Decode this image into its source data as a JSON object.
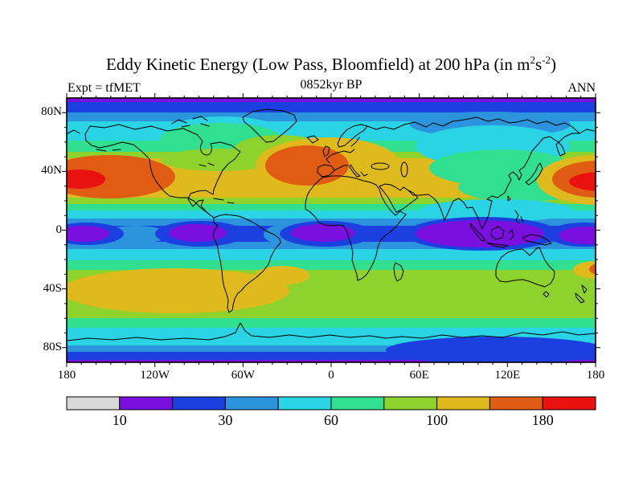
{
  "header": {
    "title": {
      "pre": "Eddy Kinetic Energy (Low Pass, Bloomfield) at 200 hPa (in m",
      "sup1": "2",
      "mid": "s",
      "sup2": "-2",
      "post": ")"
    },
    "subtitle": "0852kyr BP",
    "left_label": "Expt = tfMET",
    "right_label": "ANN"
  },
  "axes": {
    "lat_ticks": [
      {
        "label": "80N",
        "value": 80
      },
      {
        "label": "40N",
        "value": 40
      },
      {
        "label": "0",
        "value": 0
      },
      {
        "label": "40S",
        "value": -40
      },
      {
        "label": "80S",
        "value": -80
      }
    ],
    "lon_ticks": [
      {
        "label": "180",
        "value": -180
      },
      {
        "label": "120W",
        "value": -120
      },
      {
        "label": "60W",
        "value": -60
      },
      {
        "label": "0",
        "value": 0
      },
      {
        "label": "60E",
        "value": 60
      },
      {
        "label": "120E",
        "value": 120
      },
      {
        "label": "180",
        "value": 180
      }
    ],
    "minor_tick_step_deg": 10
  },
  "colorbar": {
    "colors": [
      "#d8d8d8",
      "#7a10e0",
      "#1c40e0",
      "#2b94dc",
      "#2ad4e4",
      "#30df90",
      "#8ed22e",
      "#dfba1c",
      "#e05c12",
      "#ea1111"
    ],
    "labels": [
      "10",
      "30",
      "60",
      "100",
      "180"
    ]
  },
  "chart_data": {
    "type": "heatmap",
    "title": "Eddy Kinetic Energy (Low Pass, Bloomfield) at 200 hPa (in m2 s-2)",
    "subtitle": "0852kyr BP",
    "experiment_label": "Expt = tfMET",
    "season_label": "ANN",
    "projection": "equirectangular world map",
    "x_range_deg": [
      -180,
      180
    ],
    "y_range_deg": [
      -90,
      90
    ],
    "x_tick_labels": [
      "180",
      "120W",
      "60W",
      "0",
      "60E",
      "120E",
      "180"
    ],
    "y_tick_labels": [
      "80N",
      "40N",
      "0",
      "40S",
      "80S"
    ],
    "colorbar_labeled_levels": [
      10,
      30,
      60,
      100,
      180
    ],
    "palette_order_low_to_high": [
      "gray",
      "violet",
      "blue",
      "mid-blue",
      "cyan",
      "spring-green",
      "yellow-green",
      "gold",
      "orange",
      "red"
    ],
    "grid": false,
    "legend_position": "bottom colorbar",
    "features": [
      {
        "region": "North Pacific storm track straddling the dateline near 40N",
        "value_m2s2": ">180 (red core), 140-180 orange surround"
      },
      {
        "region": "North Atlantic storm track, 40-55N, 60W-10E into Europe",
        "value_m2s2": "140-180 (orange core) with 100-140 gold over Europe/Mediterranean/Middle East"
      },
      {
        "region": "Canada / high-latitude North America",
        "value_m2s2": "45-80 (cyan-green)"
      },
      {
        "region": "Central/East Siberia interior",
        "value_m2s2": "30-60 (mid-blue/cyan)"
      },
      {
        "region": "Equatorial minima over east Pacific, Amazonia, equatorial Africa, Maritime Continent/Indian Ocean",
        "value_m2s2": "10-20 (violet) inside 20-30 blue band"
      },
      {
        "region": "Southern Hemisphere storm track 35-55S, South Pacific and South Atlantic",
        "value_m2s2": "100-140 (gold)"
      },
      {
        "region": "Southern Hemisphere 30-55S, Indian Ocean / Australia sector",
        "value_m2s2": "80-100 (yellow-green), small 140-180 orange spot east of New Zealand near dateline"
      },
      {
        "region": "Polar caps beyond 80N/80S",
        "value_m2s2": "10-30 (violet/blue strips)"
      }
    ]
  }
}
